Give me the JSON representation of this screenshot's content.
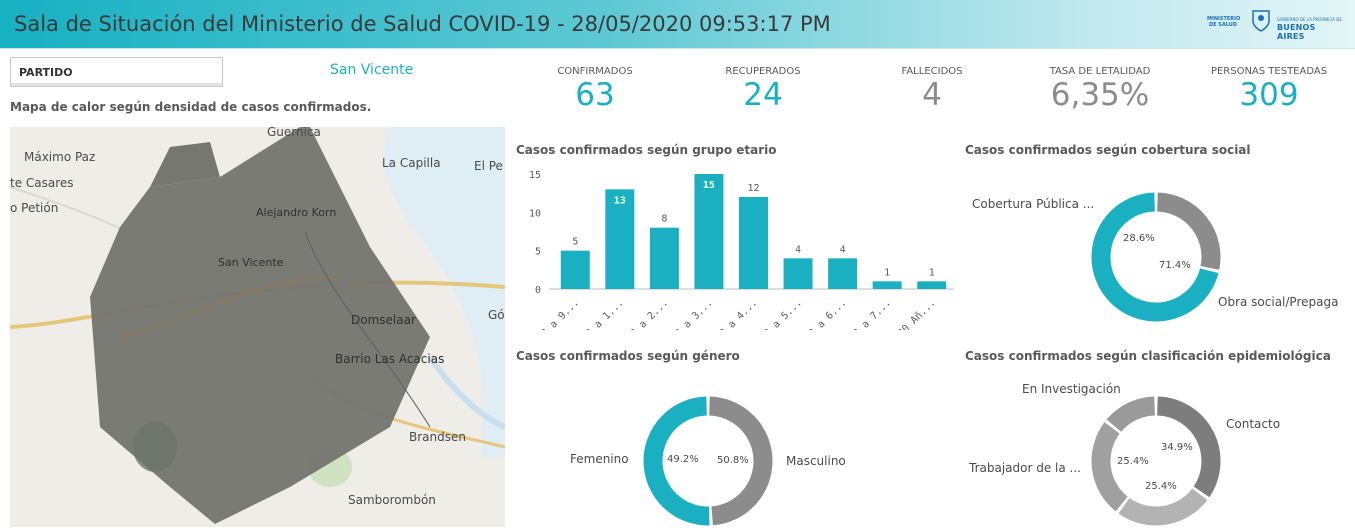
{
  "header": {
    "title": "Sala de Situación del Ministerio de Salud COVID-19 - 28/05/2020 09:53:17 PM",
    "logo_left": "MINISTERIO DE SALUD",
    "logo_right_small": "GOBIERNO DE LA PROVINCIA DE",
    "logo_right": "BUENOS AIRES"
  },
  "filter": {
    "label": "PARTIDO",
    "value": "San Vicente"
  },
  "map": {
    "title": "Mapa de calor según densidad de casos confirmados.",
    "places": [
      "Guernica",
      "Máximo Paz",
      "te Casares",
      "o Petión",
      "La Capilla",
      "El Pe",
      "Alejandro Korn",
      "San Vicente",
      "Domselaar",
      "Gó",
      "Barrio Las Acacias",
      "Brandsen",
      "Samborombón"
    ]
  },
  "kpis": [
    {
      "label": "CONFIRMADOS",
      "value": "63",
      "color": "#1ab0c2"
    },
    {
      "label": "RECUPERADOS",
      "value": "24",
      "color": "#1ab0c2"
    },
    {
      "label": "FALLECIDOS",
      "value": "4",
      "color": "#8c8c8c"
    },
    {
      "label": "TASA DE LETALIDAD",
      "value": "6,35%",
      "color": "#8c8c8c"
    },
    {
      "label": "PERSONAS TESTEADAS",
      "value": "309",
      "color": "#1ab0c2"
    }
  ],
  "charts": {
    "age_title": "Casos confirmados según grupo etario",
    "coverage_title": "Casos confirmados según cobertura social",
    "gender_title": "Casos confirmados según género",
    "epi_title": "Casos confirmados según clasificación epidemiológica"
  },
  "chart_data": [
    {
      "type": "bar",
      "title": "Casos confirmados según grupo etario",
      "categories": [
        "0 a 9...",
        "10 a 1...",
        "20 a 2...",
        "30 a 3...",
        "40 a 4...",
        "50 a 5...",
        "60 a 6...",
        "70 a 7...",
        "90 Añ..."
      ],
      "values": [
        5,
        13,
        8,
        15,
        12,
        4,
        4,
        1,
        1
      ],
      "yticks": [
        0,
        5,
        10,
        15
      ],
      "ylim": [
        0,
        15
      ],
      "color": "#1ab0c2"
    },
    {
      "type": "pie",
      "title": "Casos confirmados según cobertura social",
      "labels": [
        "Cobertura Pública ...",
        "Obra social/Prepaga"
      ],
      "values": [
        28.6,
        71.4
      ],
      "value_labels": [
        "28.6%",
        "71.4%"
      ],
      "colors": [
        "#8c8c8c",
        "#1ab0c2"
      ]
    },
    {
      "type": "pie",
      "title": "Casos confirmados según género",
      "labels": [
        "Femenino",
        "Masculino"
      ],
      "values": [
        49.2,
        50.8
      ],
      "value_labels": [
        "49.2%",
        "50.8%"
      ],
      "colors": [
        "#8c8c8c",
        "#1ab0c2"
      ]
    },
    {
      "type": "pie",
      "title": "Casos confirmados según clasificación epidemiológica",
      "labels": [
        "Contacto",
        "Trabajador de la ...",
        "En Investigación",
        ""
      ],
      "values": [
        34.9,
        25.4,
        25.4,
        14.3
      ],
      "value_labels": [
        "34.9%",
        "25.4%",
        "25.4%",
        ""
      ],
      "colors": [
        "#7d7d7d",
        "#b3b3b3",
        "#a0a0a0",
        "#9a9a9a"
      ]
    }
  ]
}
